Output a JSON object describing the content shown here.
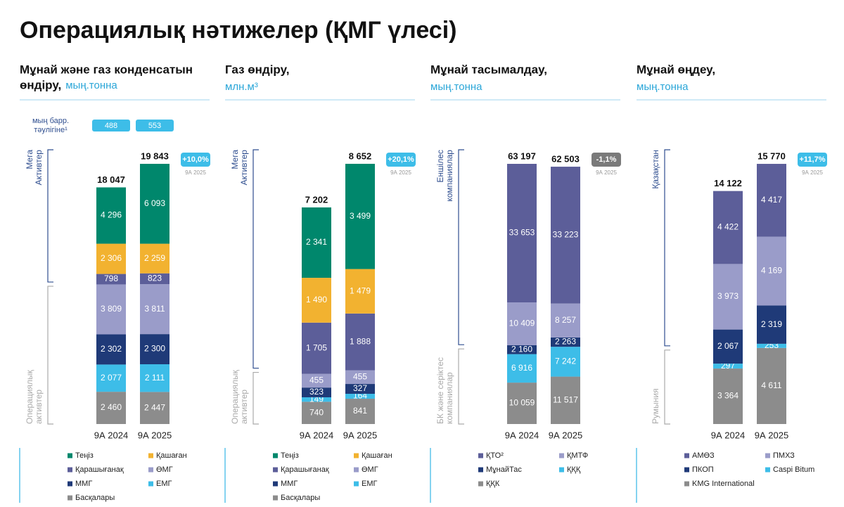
{
  "page_title": "Операциялық нәтижелер (ҚМГ үлесі)",
  "chart_data": [
    {
      "type": "stacked_bar",
      "title_lines": [
        "Мұнай және газ конденсатын",
        "өндіру,"
      ],
      "unit": "мың.тонна",
      "categories": [
        "9А 2024",
        "9А 2025"
      ],
      "extra": {
        "label_lines": [
          "мың барр.",
          "тәулігіне¹"
        ],
        "values": [
          488,
          553
        ]
      },
      "totals": [
        18047,
        19843
      ],
      "total_labels": [
        "18 047",
        "19 843"
      ],
      "change_label": "+10,0%",
      "change_note": "9А 2025",
      "badge_color": "#3dbde8",
      "groups": [
        {
          "label_lines": [
            "Мега",
            "Активтер"
          ]
        },
        {
          "label_lines": [
            "Операциялық",
            "активтер"
          ]
        }
      ],
      "series": [
        {
          "name": "Теңіз",
          "color": "#00876c",
          "values": [
            4296,
            6093
          ],
          "value_labels": [
            "4 296",
            "6 093"
          ]
        },
        {
          "name": "Қашаған",
          "color": "#f2b230",
          "values": [
            2306,
            2259
          ],
          "value_labels": [
            "2 306",
            "2 259"
          ]
        },
        {
          "name": "Қарашығанақ",
          "color": "#5c5e99",
          "values": [
            798,
            823
          ]
        },
        {
          "name": "ӨМГ",
          "color": "#9a9cc9",
          "values": [
            3809,
            3811
          ],
          "value_labels": [
            "3 809",
            "3 811"
          ]
        },
        {
          "name": "ММГ",
          "color": "#1f3a78",
          "values": [
            2302,
            2300
          ],
          "value_labels": [
            "2 302",
            "2 300"
          ]
        },
        {
          "name": "ЕМГ",
          "color": "#3dbde8",
          "values": [
            2077,
            2111
          ],
          "value_labels": [
            "2 077",
            "2 111"
          ]
        },
        {
          "name": "Басқалары",
          "color": "#8c8c8c",
          "values": [
            2460,
            2447
          ],
          "value_labels": [
            "2 460",
            "2 447"
          ]
        }
      ]
    },
    {
      "type": "stacked_bar",
      "title_lines": [
        "Газ өндіру,"
      ],
      "unit": "млн.м³",
      "categories": [
        "9А 2024",
        "9А 2025"
      ],
      "totals": [
        7202,
        8652
      ],
      "total_labels": [
        "7 202",
        "8 652"
      ],
      "change_label": "+20,1%",
      "change_note": "9А 2025",
      "badge_color": "#3dbde8",
      "groups": [
        {
          "label_lines": [
            "Мега",
            "Активтер"
          ]
        },
        {
          "label_lines": [
            "Операциялық",
            "активтер"
          ]
        }
      ],
      "series": [
        {
          "name": "Теңіз",
          "color": "#00876c",
          "values": [
            2341,
            3499
          ],
          "value_labels": [
            "2 341",
            "3 499"
          ]
        },
        {
          "name": "Қашаған",
          "color": "#f2b230",
          "values": [
            1490,
            1479
          ],
          "value_labels": [
            "1 490",
            "1 479"
          ]
        },
        {
          "name": "Қарашығанақ",
          "color": "#5c5e99",
          "values": [
            1705,
            1888
          ],
          "value_labels": [
            "1 705",
            "1 888"
          ]
        },
        {
          "name": "ӨМГ",
          "color": "#9a9cc9",
          "values": [
            455,
            455
          ]
        },
        {
          "name": "ММГ",
          "color": "#1f3a78",
          "values": [
            323,
            327
          ]
        },
        {
          "name": "ЕМГ",
          "color": "#3dbde8",
          "values": [
            149,
            164
          ]
        },
        {
          "name": "Басқалары",
          "color": "#8c8c8c",
          "values": [
            740,
            841
          ]
        }
      ]
    },
    {
      "type": "stacked_bar",
      "title_lines": [
        "Мұнай тасымалдау,"
      ],
      "unit": "мың.тонна",
      "categories": [
        "9А 2024",
        "9А 2025"
      ],
      "totals": [
        63197,
        62503
      ],
      "total_labels": [
        "63 197",
        "62 503"
      ],
      "change_label": "-1,1%",
      "change_note": "9А 2025",
      "badge_color": "#7a7a7a",
      "groups": [
        {
          "label_lines": [
            "Еншілес",
            "компаниялар"
          ]
        },
        {
          "label_lines": [
            "БК және серіктес",
            "компаниялар"
          ]
        }
      ],
      "series": [
        {
          "name": "ҚТО²",
          "color": "#5c5e99",
          "values": [
            33653,
            33223
          ],
          "value_labels": [
            "33 653",
            "33 223"
          ]
        },
        {
          "name": "ҚМТФ",
          "color": "#9a9cc9",
          "values": [
            10409,
            8257
          ],
          "value_labels": [
            "10 409",
            "8 257"
          ]
        },
        {
          "name": "МұнайТас",
          "color": "#1f3a78",
          "values": [
            2160,
            2263
          ],
          "value_labels": [
            "2 160",
            "2 263"
          ]
        },
        {
          "name": "ҚҚҚ",
          "color": "#3dbde8",
          "values": [
            6916,
            7242
          ],
          "value_labels": [
            "6 916",
            "7 242"
          ]
        },
        {
          "name": "ҚҚК",
          "color": "#8c8c8c",
          "values": [
            10059,
            11517
          ],
          "value_labels": [
            "10 059",
            "11 517"
          ]
        }
      ]
    },
    {
      "type": "stacked_bar",
      "title_lines": [
        "Мұнай өңдеу,"
      ],
      "unit": "мың.тонна",
      "categories": [
        "9А 2024",
        "9А 2025"
      ],
      "totals": [
        14122,
        15770
      ],
      "total_labels": [
        "14 122",
        "15 770"
      ],
      "change_label": "+11,7%",
      "change_note": "9А 2025",
      "badge_color": "#3dbde8",
      "groups": [
        {
          "label_lines": [
            "Қазақстан"
          ]
        },
        {
          "label_lines": [
            "Румыния"
          ]
        }
      ],
      "series": [
        {
          "name": "АМӨЗ",
          "color": "#5c5e99",
          "values": [
            4422,
            4417
          ],
          "value_labels": [
            "4 422",
            "4 417"
          ]
        },
        {
          "name": "ПМХЗ",
          "color": "#9a9cc9",
          "values": [
            3973,
            4169
          ],
          "value_labels": [
            "3 973",
            "4 169"
          ]
        },
        {
          "name": "ПКОП",
          "color": "#1f3a78",
          "values": [
            2067,
            2319
          ],
          "value_labels": [
            "2 067",
            "2 319"
          ]
        },
        {
          "name": "Caspi Bitum",
          "color": "#3dbde8",
          "values": [
            297,
            253
          ]
        },
        {
          "name": "KMG International",
          "color": "#8c8c8c",
          "values": [
            3364,
            4611
          ],
          "value_labels": [
            "3 364",
            "4 611"
          ]
        }
      ]
    }
  ]
}
